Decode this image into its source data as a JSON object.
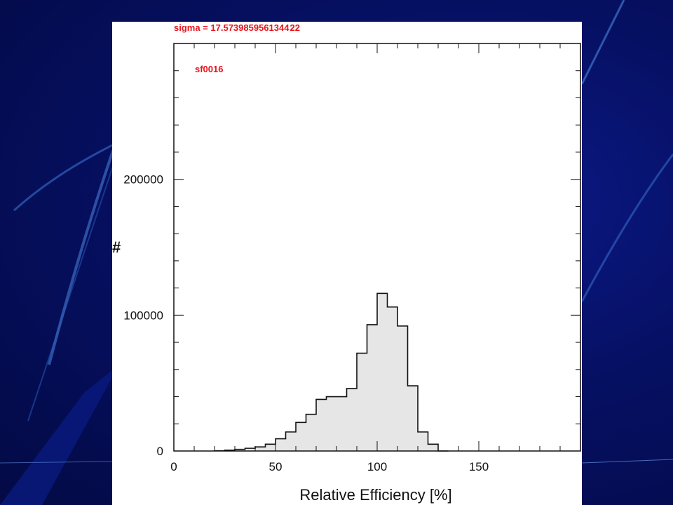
{
  "slide": {
    "background_color": "#061063",
    "accent_color": "#3a78d8"
  },
  "chart_data": {
    "type": "bar",
    "title": "",
    "annotations": [
      "sigma = 17.5739859561344 22",
      "sf0016"
    ],
    "annotation_color": "#e8141b",
    "xlabel": "Relative Efficiency [%]",
    "ylabel": "#",
    "xlim": [
      0,
      200
    ],
    "ylim": [
      0,
      300000
    ],
    "x_ticks": [
      0,
      50,
      100,
      150
    ],
    "y_ticks": [
      0,
      100000,
      200000
    ],
    "x_tick_labels": [
      "0",
      "50",
      "100",
      "150"
    ],
    "y_tick_labels": [
      "0",
      "100000",
      "200000"
    ],
    "bin_width": 5,
    "bin_edges_start": 20,
    "values": [
      200,
      600,
      1200,
      2000,
      3000,
      5000,
      9000,
      14000,
      21000,
      27000,
      38000,
      40000,
      40000,
      46000,
      72000,
      93000,
      116000,
      106000,
      92000,
      48000,
      14000,
      5000,
      0
    ],
    "fill_color": "#e6e6e6",
    "grid": false
  }
}
